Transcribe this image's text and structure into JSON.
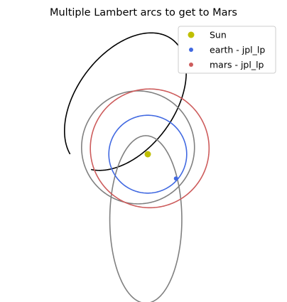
{
  "chart_data": {
    "type": "scatter",
    "title": "Multiple Lambert arcs to get to Mars",
    "xlabel": "",
    "ylabel": "",
    "axes_visible": false,
    "aspect": "equal",
    "units": "AU",
    "xlim": [
      -1.9,
      1.9
    ],
    "ylim": [
      -1.9,
      1.9
    ],
    "legend": {
      "placement": "top-right",
      "entries": [
        {
          "label": "Sun",
          "color": "#bfbf00",
          "marker": "circle-large"
        },
        {
          "label": "earth - jpl_lp",
          "color": "#4169e1",
          "marker": "circle"
        },
        {
          "label": "mars - jpl_lp",
          "color": "#cd5c5c",
          "marker": "circle"
        }
      ]
    },
    "bodies": [
      {
        "name": "Sun",
        "color": "#bfbf00",
        "x": 0.0,
        "y": 0.0
      },
      {
        "name": "earth - jpl_lp",
        "color": "#4169e1",
        "x": 0.29,
        "y": -0.25
      }
    ],
    "orbits": [
      {
        "name": "earth - jpl_lp",
        "color": "#4169e1",
        "center": [
          0.0,
          0.0
        ],
        "a": 0.4,
        "b": 0.4,
        "rotation_deg": 0,
        "arc_deg": [
          0,
          360
        ]
      },
      {
        "name": "mars - jpl_lp",
        "color": "#cd5c5c",
        "center": [
          0.02,
          0.06
        ],
        "a": 0.61,
        "b": 0.61,
        "rotation_deg": 0,
        "arc_deg": [
          0,
          360
        ]
      }
    ],
    "lambert_arcs": [
      {
        "color": "#000000",
        "center": [
          -0.23,
          0.54
        ],
        "a": 0.8,
        "b": 0.5,
        "rotation_deg": 53,
        "arc_deg": [
          -164,
          165
        ]
      },
      {
        "color": "#808080",
        "center": [
          -0.1,
          0.07
        ],
        "a": 0.58,
        "b": 0.58,
        "rotation_deg": 0,
        "arc_deg": [
          0,
          360
        ]
      },
      {
        "color": "#808080",
        "center": [
          -0.02,
          -0.67
        ],
        "a": 0.37,
        "b": 0.86,
        "rotation_deg": 0,
        "arc_deg": [
          0,
          360
        ]
      }
    ]
  }
}
